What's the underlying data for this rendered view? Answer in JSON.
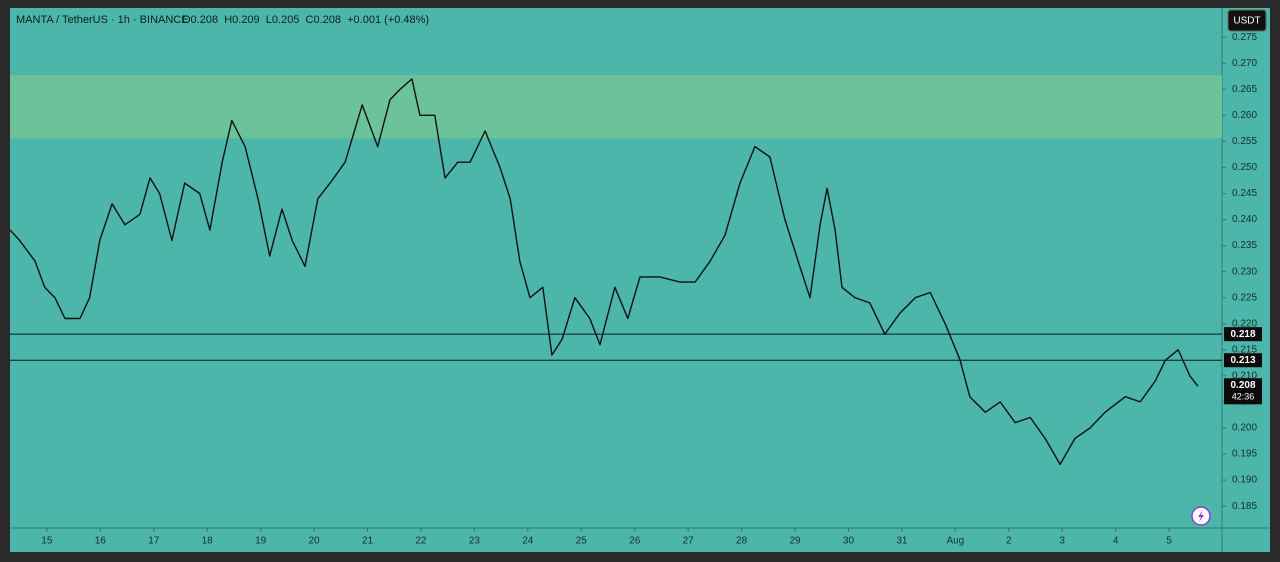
{
  "chart_data": {
    "type": "line",
    "symbol": "MANTA / TetherUS · 1h · BINANCE",
    "ohlc": "O0.208  H0.209  L0.205  C0.208  +0.001 (+0.48%)",
    "currency": "USDT",
    "color": "#111111",
    "background": "#4cb6aa",
    "x": [
      14.31,
      14.49,
      14.78,
      14.96,
      15.15,
      15.34,
      15.62,
      15.8,
      15.99,
      16.22,
      16.46,
      16.74,
      16.93,
      17.11,
      17.34,
      17.58,
      17.86,
      18.05,
      18.28,
      18.46,
      18.71,
      18.95,
      19.17,
      19.4,
      19.59,
      19.83,
      20.07,
      20.3,
      20.58,
      20.9,
      21.19,
      21.42,
      21.61,
      21.83,
      21.98,
      22.26,
      22.45,
      22.69,
      22.92,
      23.2,
      23.48,
      23.67,
      23.85,
      24.04,
      24.28,
      24.45,
      24.64,
      24.88,
      25.16,
      25.35,
      25.63,
      25.87,
      26.1,
      26.47,
      26.85,
      27.13,
      27.41,
      27.69,
      27.97,
      28.25,
      28.53,
      28.81,
      29.09,
      29.28,
      29.47,
      29.6,
      29.75,
      29.88,
      30.12,
      30.4,
      30.68,
      30.96,
      31.25,
      31.53,
      31.81,
      32.09,
      32.27,
      32.56,
      32.84,
      33.12,
      33.4,
      33.68,
      33.96,
      34.24,
      34.52,
      34.8,
      35.18,
      35.46,
      35.74,
      35.93,
      36.17,
      36.39,
      36.54
    ],
    "values": [
      0.238,
      0.236,
      0.232,
      0.227,
      0.225,
      0.221,
      0.221,
      0.225,
      0.236,
      0.243,
      0.239,
      0.241,
      0.248,
      0.245,
      0.236,
      0.247,
      0.245,
      0.238,
      0.251,
      0.259,
      0.254,
      0.244,
      0.233,
      0.242,
      0.236,
      0.231,
      0.244,
      0.247,
      0.251,
      0.262,
      0.254,
      0.263,
      0.265,
      0.267,
      0.26,
      0.26,
      0.248,
      0.251,
      0.251,
      0.257,
      0.25,
      0.244,
      0.232,
      0.225,
      0.227,
      0.214,
      0.217,
      0.225,
      0.221,
      0.216,
      0.227,
      0.221,
      0.229,
      0.229,
      0.228,
      0.228,
      0.232,
      0.237,
      0.247,
      0.254,
      0.252,
      0.24,
      0.231,
      0.225,
      0.239,
      0.246,
      0.238,
      0.227,
      0.225,
      0.224,
      0.218,
      0.222,
      0.225,
      0.226,
      0.22,
      0.213,
      0.206,
      0.203,
      0.205,
      0.201,
      0.202,
      0.198,
      0.193,
      0.198,
      0.2,
      0.203,
      0.206,
      0.205,
      0.209,
      0.213,
      0.215,
      0.21,
      0.208
    ],
    "xlim": [
      14.31,
      36.99
    ],
    "xticks": [
      15,
      16,
      17,
      18,
      19,
      20,
      21,
      22,
      23,
      24,
      25,
      26,
      27,
      28,
      29,
      30,
      31,
      {
        "value": 32,
        "label": "Aug"
      },
      {
        "value": 33,
        "label": "2"
      },
      {
        "value": 34,
        "label": "3"
      },
      {
        "value": 35,
        "label": "4"
      },
      {
        "value": 36,
        "label": "5"
      }
    ],
    "ylim": [
      0.1808,
      0.2806
    ],
    "yticks": [
      0.185,
      {
        "value": 0.19,
        "label": "0.190"
      },
      0.195,
      {
        "value": 0.2,
        "label": "0.200"
      },
      0.205,
      {
        "value": 0.21,
        "label": "0.210"
      },
      0.215,
      {
        "value": 0.22,
        "label": "0.220"
      },
      0.225,
      {
        "value": 0.23,
        "label": "0.230"
      },
      0.235,
      {
        "value": 0.24,
        "label": "0.240"
      },
      0.245,
      {
        "value": 0.25,
        "label": "0.250"
      },
      0.255,
      {
        "value": 0.26,
        "label": "0.260"
      },
      0.265,
      {
        "value": 0.27,
        "label": "0.270"
      },
      0.275
    ],
    "zone": {
      "from": 0.2556,
      "to": 0.2677,
      "color": "#6cc39a"
    },
    "hlines": [
      0.218,
      0.213
    ],
    "last_price": {
      "value": 0.208,
      "countdown": "42:36"
    }
  }
}
